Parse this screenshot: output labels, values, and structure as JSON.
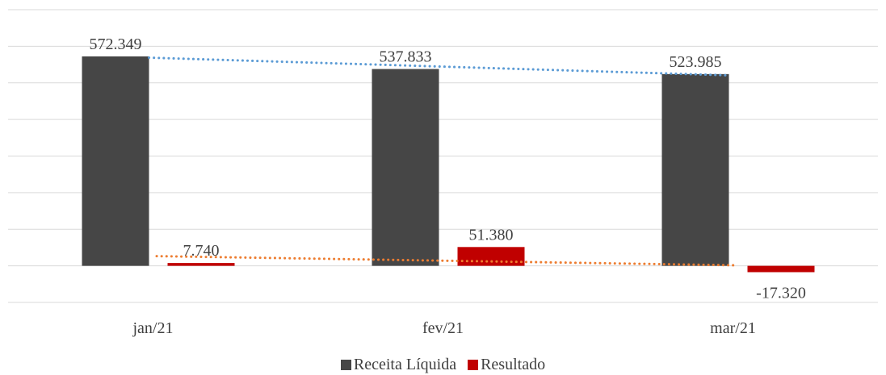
{
  "chart_data": {
    "type": "bar",
    "title": "",
    "xlabel": "",
    "ylabel": "",
    "categories": [
      "jan/21",
      "fev/21",
      "mar/21"
    ],
    "series": [
      {
        "name": "Receita Líquida",
        "color": "#464646",
        "values": [
          572349,
          537833,
          523985
        ],
        "labels": [
          "572.349",
          "537.833",
          "523.985"
        ]
      },
      {
        "name": "Resultado",
        "color": "#c00000",
        "values": [
          7740,
          51380,
          -17320
        ],
        "labels": [
          "7.740",
          "51.380",
          "-17.320"
        ]
      }
    ],
    "trendlines": [
      {
        "series": "Receita Líquida",
        "color": "#5b9bd5",
        "style": "dotted",
        "type": "linear"
      },
      {
        "series": "Resultado",
        "color": "#ed7d31",
        "style": "dotted",
        "type": "linear"
      }
    ],
    "ylim": [
      -100000,
      700000
    ],
    "y_gridline_step": 100000,
    "y_tick_labels_visible": false,
    "grid": true,
    "legend": "bottom"
  }
}
